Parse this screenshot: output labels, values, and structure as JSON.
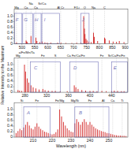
{
  "chart_data": [
    {
      "type": "stem",
      "color": "#cc0000",
      "grid": false,
      "xlim": [
        470,
        910
      ],
      "ylim": [
        0,
        1.25
      ],
      "yticks": [
        0,
        0.2,
        0.4,
        0.6,
        0.8,
        {
          "value": 1.0,
          "label": "1.0"
        }
      ],
      "xticks": [
        500,
        550,
        600,
        650,
        700,
        750,
        800,
        850,
        900
      ],
      "x": [
        479,
        516,
        518,
        521,
        535,
        554,
        558,
        569,
        578,
        589,
        598,
        612,
        638,
        651,
        670,
        693,
        712,
        728,
        739,
        742,
        744,
        748,
        752,
        759,
        768,
        777,
        780,
        793,
        820,
        822,
        838,
        853,
        866,
        877,
        895
      ],
      "values": [
        0.05,
        0.12,
        0.08,
        0.06,
        0.28,
        0.22,
        0.1,
        0.06,
        0.08,
        0.05,
        0.04,
        0.04,
        0.04,
        0.04,
        0.03,
        0.03,
        0.04,
        0.05,
        1.0,
        0.55,
        0.35,
        0.18,
        0.12,
        0.08,
        0.06,
        0.4,
        0.25,
        0.1,
        0.22,
        0.18,
        0.12,
        0.08,
        0.07,
        0.1,
        0.06
      ],
      "annotations": [
        {
          "x": 479,
          "label": "Mg"
        },
        {
          "x": 516,
          "label": "Ca"
        },
        {
          "x": 535,
          "label": "Na"
        },
        {
          "x": 554,
          "label": "Ca"
        },
        {
          "x": 578,
          "label": "Sr/Ca"
        },
        {
          "x": 650,
          "label": "Al Cr"
        },
        {
          "x": 712,
          "label": "F/Li"
        },
        {
          "x": 743,
          "label": "O"
        },
        {
          "x": 777,
          "label": "Na"
        },
        {
          "x": 820,
          "label": "C"
        }
      ],
      "vlines": [
        479,
        516,
        535,
        554,
        578,
        650,
        712,
        743,
        777,
        820
      ],
      "boxes": [
        {
          "x0": 472,
          "x1": 500,
          "label": "F"
        },
        {
          "x0": 503,
          "x1": 542,
          "label": "G"
        },
        {
          "x0": 546,
          "x1": 574,
          "label": "H"
        },
        {
          "x0": 577,
          "x1": 645,
          "label": "I"
        },
        {
          "x0": 728,
          "x1": 760,
          "label": "J"
        }
      ]
    },
    {
      "type": "stem",
      "color": "#cc0000",
      "grid": false,
      "ylabel": "Relative Intensity to the Maximum",
      "xlim": [
        260,
        470
      ],
      "ylim": [
        0,
        1.25
      ],
      "yticks": [
        0,
        0.2,
        0.4,
        0.6,
        0.8,
        {
          "value": 1.0,
          "label": "1.0"
        }
      ],
      "xticks": [
        280,
        320,
        360,
        400,
        440
      ],
      "x": [
        267,
        270,
        274,
        279,
        281,
        284,
        287,
        291,
        295,
        300,
        306,
        313,
        317,
        323,
        330,
        336,
        345,
        358,
        371,
        374,
        378,
        385,
        392,
        400,
        406,
        413,
        422,
        430,
        440,
        445,
        451,
        458,
        463
      ],
      "values": [
        0.08,
        0.06,
        0.05,
        1.0,
        0.75,
        0.5,
        0.35,
        0.25,
        0.18,
        0.14,
        0.1,
        0.12,
        0.08,
        0.06,
        0.05,
        0.05,
        0.04,
        0.04,
        0.25,
        0.18,
        0.12,
        0.08,
        0.06,
        0.05,
        0.05,
        0.04,
        0.05,
        0.04,
        0.05,
        0.06,
        0.05,
        0.04,
        0.04
      ],
      "annotations": [
        {
          "x": 267,
          "label": "Mg"
        },
        {
          "x": 283,
          "label": "a/Fe/Mn/Ta"
        },
        {
          "x": 313,
          "label": "Fe"
        },
        {
          "x": 336,
          "label": "S"
        },
        {
          "x": 374,
          "label": "Ca Fe/Ca/Fe"
        },
        {
          "x": 422,
          "label": "Fe"
        },
        {
          "x": 449,
          "label": "Sr/Ca/Fe/Fe"
        }
      ],
      "vlines": [
        267,
        285,
        313,
        336,
        374,
        422,
        449
      ],
      "boxes": [
        {
          "x0": 290,
          "x1": 345,
          "label": "C"
        },
        {
          "x0": 363,
          "x1": 415,
          "label": "D"
        },
        {
          "x0": 440,
          "x1": 469,
          "label": "E"
        }
      ]
    },
    {
      "type": "stem",
      "color": "#cc0000",
      "grid": false,
      "xlabel": "Wavelength (nm)",
      "xlim": [
        200,
        260
      ],
      "ylim": [
        0,
        1.25
      ],
      "yticks": [
        0,
        0.2,
        0.4,
        0.6,
        0.8,
        {
          "value": 1.0,
          "label": "1.0"
        }
      ],
      "xticks": [
        210,
        220,
        230,
        240,
        250
      ],
      "x": [
        201,
        202,
        203,
        204,
        205,
        206,
        207,
        208,
        209,
        210,
        211,
        212,
        213,
        214,
        215,
        216,
        217,
        218,
        219,
        220,
        221,
        222,
        223,
        224,
        225,
        226,
        227,
        228,
        229,
        230,
        231,
        232,
        233,
        234,
        235,
        236,
        237,
        238,
        239,
        240,
        241,
        242,
        243,
        244,
        245,
        246,
        247,
        248,
        249,
        250,
        251,
        252,
        253,
        254,
        255,
        256,
        257,
        258,
        259
      ],
      "values": [
        0.15,
        0.22,
        0.3,
        0.25,
        0.35,
        0.45,
        0.55,
        0.42,
        0.32,
        0.28,
        0.38,
        0.5,
        0.38,
        0.3,
        0.25,
        0.2,
        0.18,
        0.15,
        0.12,
        0.1,
        0.12,
        0.18,
        0.28,
        1.0,
        0.75,
        0.55,
        0.42,
        0.32,
        0.25,
        0.2,
        0.18,
        0.5,
        0.65,
        0.55,
        0.45,
        0.55,
        0.65,
        0.55,
        0.45,
        0.55,
        0.45,
        0.38,
        0.32,
        0.28,
        0.25,
        0.22,
        0.2,
        0.18,
        0.15,
        0.14,
        0.12,
        0.1,
        0.08,
        0.07,
        0.06,
        0.06,
        0.05,
        0.05,
        0.04
      ],
      "annotations": [
        {
          "x": 204,
          "label": "Si"
        },
        {
          "x": 212,
          "label": "Fe"
        },
        {
          "x": 224,
          "label": "Fe/Mg"
        },
        {
          "x": 232,
          "label": "Mg/Si"
        },
        {
          "x": 240,
          "label": "Fe"
        },
        {
          "x": 247,
          "label": "Al"
        },
        {
          "x": 252,
          "label": "Ca"
        },
        {
          "x": 257,
          "label": "Ti"
        }
      ],
      "vlines": [
        204,
        212,
        224,
        232,
        240,
        247,
        252,
        257
      ],
      "boxes": [
        {
          "x0": 205,
          "x1": 219,
          "label": "A"
        },
        {
          "x0": 232,
          "x1": 250,
          "label": "B"
        }
      ]
    }
  ]
}
